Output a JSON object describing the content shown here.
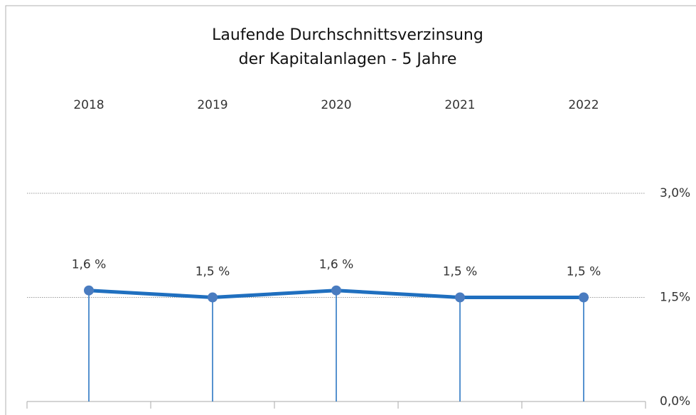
{
  "chart_data": {
    "type": "line",
    "title": [
      "Laufende Durchschnittsverzinsung",
      "der Kapitalanlagen - 5 Jahre"
    ],
    "categories": [
      "2018",
      "2019",
      "2020",
      "2021",
      "2022"
    ],
    "values": [
      1.6,
      1.5,
      1.6,
      1.5,
      1.5
    ],
    "value_labels": [
      "1,6 %",
      "1,5 %",
      "1,6 %",
      "1,5 %",
      "1,5 %"
    ],
    "color": "#1f6fbf",
    "ylim": [
      0,
      3
    ],
    "yticks": [
      {
        "value": 0,
        "label": "0,0%"
      },
      {
        "value": 1.5,
        "label": "1,5%"
      },
      {
        "value": 3,
        "label": "3,0%"
      }
    ],
    "grid": true
  }
}
